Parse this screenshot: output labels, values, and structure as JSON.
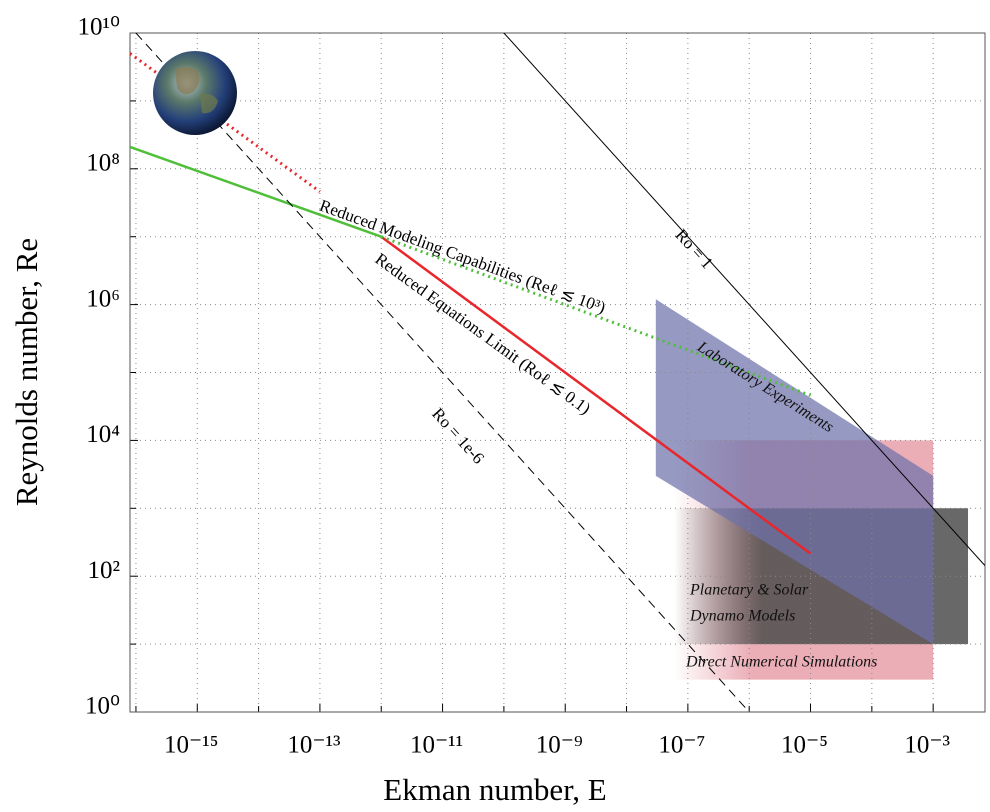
{
  "chart_data": {
    "type": "line",
    "xlabel": "Ekman number, E",
    "ylabel": "Reynolds number, Re",
    "xscale": "log",
    "yscale": "log",
    "xlim": [
      8e-17,
      0.007
    ],
    "ylim": [
      1,
      10000000000.0
    ],
    "xticks": [
      {
        "value": 1e-15,
        "label": "10⁻¹⁵"
      },
      {
        "value": 1e-13,
        "label": "10⁻¹³"
      },
      {
        "value": 1e-11,
        "label": "10⁻¹¹"
      },
      {
        "value": 1e-09,
        "label": "10⁻⁹"
      },
      {
        "value": 1e-07,
        "label": "10⁻⁷"
      },
      {
        "value": 1e-05,
        "label": "10⁻⁵"
      },
      {
        "value": 0.001,
        "label": "10⁻³"
      }
    ],
    "yticks": [
      {
        "value": 1,
        "label": "10⁰"
      },
      {
        "value": 100,
        "label": "10²"
      },
      {
        "value": 10000,
        "label": "10⁴"
      },
      {
        "value": 1000000,
        "label": "10⁶"
      },
      {
        "value": 100000000,
        "label": "10⁸"
      },
      {
        "value": 10000000000,
        "label": "10¹⁰"
      }
    ],
    "x_minor_ticks": [
      1e-16,
      1e-14,
      1e-12,
      1e-10,
      1e-08,
      1e-06,
      0.0001
    ],
    "y_minor_ticks": [
      10,
      1000,
      100000,
      10000000,
      1000000000
    ],
    "grid": true,
    "series": [
      {
        "color": "#e8262b",
        "style": "dotted",
        "x": [
          8e-17,
          1e-13
        ],
        "values": [
          5000000000.0,
          46000000.0
        ]
      },
      {
        "color": "#e8262b",
        "style": "solid",
        "x": [
          1e-12,
          1e-05
        ],
        "values": [
          10000000.0,
          215
        ]
      },
      {
        "color": "#4fbf3a",
        "style": "solid",
        "x": [
          8e-17,
          1e-12
        ],
        "values": [
          210000000.0,
          10000000.0
        ]
      },
      {
        "color": "#4fbf3a",
        "style": "dotted",
        "x": [
          1e-12,
          1e-05
        ],
        "values": [
          10000000.0,
          46000.0
        ]
      },
      {
        "color": "#000000",
        "style": "solid",
        "x": [
          1e-10,
          0.007
        ],
        "values": [
          10000000000.0,
          143
        ]
      },
      {
        "color": "#000000",
        "style": "dashed",
        "x": [
          1e-16,
          1e-06
        ],
        "values": [
          10000000000.0,
          1
        ]
      }
    ],
    "regions": [
      {
        "label": [
          "Direct Numerical Simulations"
        ],
        "color": "#e28a96",
        "x": [
          6e-08,
          0.001,
          0.001,
          6e-08
        ],
        "values": [
          3,
          3,
          10000,
          10000
        ]
      },
      {
        "label": [
          "Planetary & Solar",
          "Dynamo Models"
        ],
        "color": "#4d4d4d",
        "x": [
          6e-08,
          0.0037,
          0.0037,
          6e-08
        ],
        "values": [
          10,
          10,
          1000,
          1000
        ]
      },
      {
        "label": [
          "Laboratory Experiments"
        ],
        "color": "#6e72ab",
        "x": [
          3e-08,
          3e-08,
          0.001,
          0.001
        ],
        "values": [
          1200000.0,
          3000,
          10,
          3000
        ]
      }
    ],
    "annotations": [
      "Ro = 1",
      "Ro = 1e-6",
      "Reduced Modeling Capabilities (Reℓ ≲ 10³)",
      "Reduced Equations Limit (Roℓ ≲ 0.1)"
    ]
  }
}
